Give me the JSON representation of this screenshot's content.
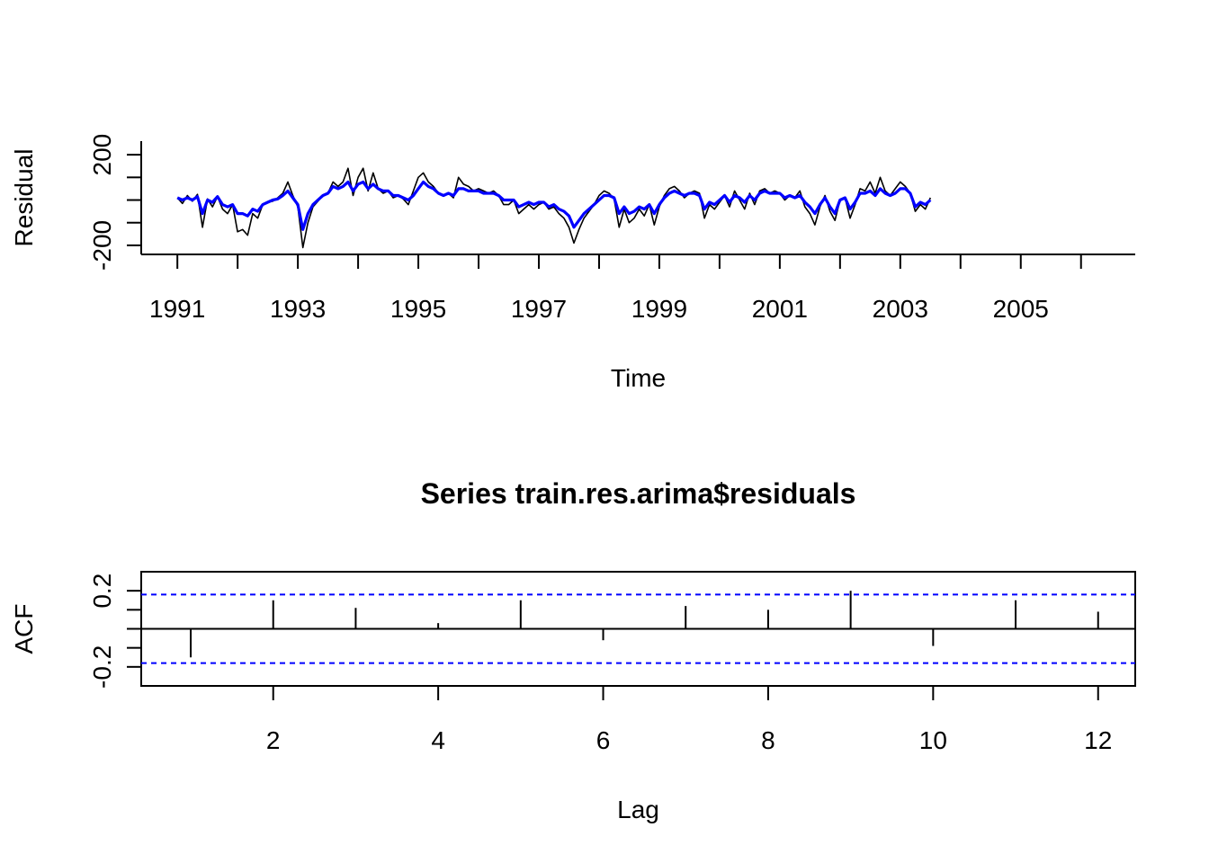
{
  "chart_data": [
    {
      "type": "line",
      "title": "",
      "xlabel": "Time",
      "ylabel": "Residual",
      "xlim": [
        1990.4,
        2006.9
      ],
      "ylim": [
        -240,
        260
      ],
      "x_ticks": [
        1991,
        1992,
        1993,
        1994,
        1995,
        1996,
        1997,
        1998,
        1999,
        2000,
        2001,
        2002,
        2003,
        2004,
        2005,
        2006
      ],
      "x_tick_labels": [
        "1991",
        "",
        "1993",
        "",
        "1995",
        "",
        "1997",
        "",
        "1999",
        "",
        "2001",
        "",
        "2003",
        "",
        "2005",
        ""
      ],
      "y_ticks": [
        -200,
        -100,
        0,
        100,
        200
      ],
      "y_tick_labels": [
        "-200",
        "",
        "",
        "",
        "200"
      ],
      "grid": false,
      "series": [
        {
          "name": "",
          "color": "#000000",
          "x_start": 1991.0,
          "x_step": 0.08333,
          "values": [
            10,
            -15,
            20,
            -5,
            25,
            -120,
            5,
            -30,
            15,
            -40,
            -60,
            -20,
            -140,
            -130,
            -155,
            -60,
            -80,
            -20,
            -10,
            -5,
            10,
            30,
            80,
            20,
            -30,
            -210,
            -100,
            -30,
            -5,
            20,
            30,
            80,
            60,
            80,
            140,
            20,
            100,
            140,
            40,
            120,
            50,
            30,
            40,
            10,
            20,
            5,
            -20,
            40,
            100,
            120,
            80,
            60,
            30,
            20,
            30,
            10,
            100,
            70,
            60,
            40,
            50,
            40,
            30,
            40,
            20,
            -20,
            -20,
            0,
            -60,
            -40,
            -20,
            -40,
            -20,
            -10,
            -40,
            -30,
            -60,
            -80,
            -120,
            -190,
            -130,
            -80,
            -50,
            -20,
            20,
            40,
            30,
            5,
            -120,
            -40,
            -100,
            -80,
            -40,
            -70,
            -20,
            -110,
            -30,
            20,
            50,
            60,
            40,
            10,
            30,
            40,
            30,
            -80,
            -20,
            -40,
            -10,
            20,
            -30,
            40,
            0,
            -40,
            30,
            -20,
            40,
            50,
            30,
            40,
            30,
            0,
            20,
            10,
            40,
            -30,
            -60,
            -110,
            -30,
            20,
            -50,
            -90,
            0,
            10,
            -80,
            -20,
            50,
            40,
            80,
            30,
            100,
            40,
            20,
            50,
            80,
            60,
            30,
            -50,
            -20,
            -40,
            10
          ]
        },
        {
          "name": "",
          "color": "#0000ff",
          "x_start": 1991.0,
          "x_step": 0.08333,
          "values": [
            10,
            0,
            10,
            0,
            15,
            -60,
            0,
            -10,
            15,
            -20,
            -30,
            -20,
            -60,
            -60,
            -70,
            -40,
            -50,
            -20,
            -10,
            0,
            5,
            20,
            40,
            10,
            -20,
            -130,
            -60,
            -20,
            0,
            20,
            30,
            60,
            50,
            60,
            80,
            40,
            70,
            80,
            50,
            70,
            50,
            40,
            40,
            20,
            20,
            10,
            0,
            20,
            50,
            80,
            60,
            50,
            30,
            20,
            30,
            20,
            50,
            50,
            40,
            40,
            40,
            30,
            30,
            30,
            20,
            0,
            0,
            0,
            -30,
            -20,
            -10,
            -20,
            -10,
            -10,
            -30,
            -20,
            -40,
            -50,
            -70,
            -120,
            -90,
            -60,
            -40,
            -20,
            0,
            20,
            20,
            10,
            -60,
            -30,
            -60,
            -50,
            -30,
            -40,
            -20,
            -60,
            -20,
            10,
            30,
            40,
            30,
            20,
            30,
            30,
            20,
            -40,
            -10,
            -20,
            0,
            20,
            -10,
            20,
            10,
            -10,
            20,
            0,
            30,
            40,
            30,
            30,
            30,
            10,
            20,
            10,
            20,
            -10,
            -30,
            -60,
            -20,
            10,
            -30,
            -60,
            0,
            10,
            -40,
            -10,
            30,
            30,
            40,
            20,
            50,
            30,
            20,
            30,
            50,
            50,
            30,
            -30,
            -10,
            -20,
            0
          ]
        }
      ]
    },
    {
      "type": "bar",
      "title": "Series  train.res.arima$residuals",
      "xlabel": "Lag",
      "ylabel": "ACF",
      "xlim": [
        0.4,
        12.45
      ],
      "ylim": [
        -0.3,
        0.3
      ],
      "x_ticks": [
        2,
        4,
        6,
        8,
        10,
        12
      ],
      "x_tick_labels": [
        "2",
        "4",
        "6",
        "8",
        "10",
        "12"
      ],
      "y_ticks": [
        -0.2,
        -0.1,
        0.0,
        0.1,
        0.2
      ],
      "y_tick_labels": [
        "-0.2",
        "",
        "",
        "",
        "0.2"
      ],
      "confidence_bound": 0.18,
      "bound_color": "#0000ff",
      "grid": false,
      "categories": [
        1,
        2,
        3,
        4,
        5,
        6,
        7,
        8,
        9,
        10,
        11,
        12
      ],
      "values": [
        -0.15,
        0.15,
        0.11,
        0.03,
        0.15,
        -0.06,
        0.12,
        0.1,
        0.2,
        -0.09,
        0.15,
        0.09
      ]
    }
  ]
}
